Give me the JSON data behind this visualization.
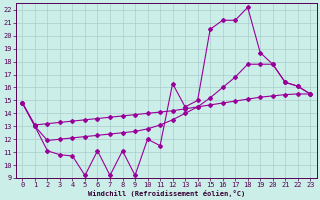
{
  "xlabel": "Windchill (Refroidissement éolien,°C)",
  "bg_color": "#cceee8",
  "grid_color": "#aacccc",
  "line_color": "#990099",
  "xlim": [
    -0.5,
    23.5
  ],
  "ylim": [
    9,
    22.5
  ],
  "xticks": [
    0,
    1,
    2,
    3,
    4,
    5,
    6,
    7,
    8,
    9,
    10,
    11,
    12,
    13,
    14,
    15,
    16,
    17,
    18,
    19,
    20,
    21,
    22,
    23
  ],
  "yticks": [
    9,
    10,
    11,
    12,
    13,
    14,
    15,
    16,
    17,
    18,
    19,
    20,
    21,
    22
  ],
  "line1_x": [
    0,
    1,
    2,
    3,
    4,
    5,
    6,
    7,
    8,
    9,
    10,
    11,
    12,
    13,
    14,
    15,
    16,
    17,
    18,
    19,
    20,
    21,
    22,
    23
  ],
  "line1_y": [
    14.8,
    13.0,
    11.1,
    10.8,
    10.7,
    9.2,
    11.1,
    9.2,
    11.1,
    9.2,
    12.0,
    11.5,
    16.3,
    14.5,
    15.0,
    20.5,
    21.2,
    21.2,
    22.2,
    18.7,
    17.8,
    16.4,
    16.1,
    15.5
  ],
  "line2_x": [
    0,
    1,
    2,
    3,
    4,
    5,
    6,
    7,
    8,
    9,
    10,
    11,
    12,
    13,
    14,
    15,
    16,
    17,
    18,
    19,
    20,
    21,
    22,
    23
  ],
  "line2_y": [
    14.8,
    13.1,
    13.2,
    13.3,
    13.4,
    13.5,
    13.6,
    13.7,
    13.8,
    13.9,
    14.0,
    14.1,
    14.2,
    14.35,
    14.5,
    14.65,
    14.8,
    14.95,
    15.1,
    15.25,
    15.35,
    15.45,
    15.5,
    15.5
  ],
  "line3_x": [
    0,
    1,
    2,
    3,
    4,
    5,
    6,
    7,
    8,
    9,
    10,
    11,
    12,
    13,
    14,
    15,
    16,
    17,
    18,
    19,
    20,
    21,
    22,
    23
  ],
  "line3_y": [
    14.8,
    13.0,
    11.9,
    12.0,
    12.1,
    12.2,
    12.3,
    12.4,
    12.5,
    12.6,
    12.8,
    13.1,
    13.5,
    14.0,
    14.5,
    15.2,
    16.0,
    16.8,
    17.8,
    17.8,
    17.8,
    16.4,
    16.1,
    15.5
  ]
}
